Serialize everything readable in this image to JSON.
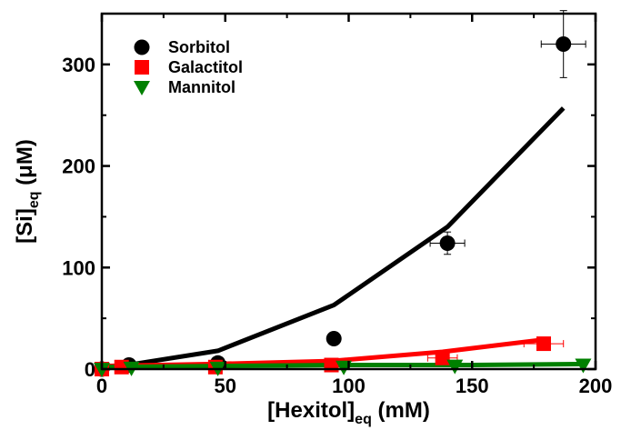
{
  "chart_data": {
    "type": "scatter",
    "xlabel": {
      "main": "[Hexitol]",
      "sub": "eq",
      "suffix": " (mM)"
    },
    "ylabel": {
      "main": "[Si]",
      "sub": "eq",
      "suffix": " (μM)"
    },
    "xlim": [
      0,
      200
    ],
    "ylim": [
      0,
      350
    ],
    "xticks": [
      0,
      50,
      100,
      150,
      200
    ],
    "yticks": [
      0,
      100,
      200,
      300
    ],
    "grid": false,
    "legend": "top-left",
    "series": [
      {
        "name": "Sorbitol",
        "marker": "circle",
        "color": "#000000",
        "points": [
          {
            "x": 0,
            "y": 0,
            "xerr": 0,
            "yerr": 0
          },
          {
            "x": 11,
            "y": 4,
            "xerr": 0,
            "yerr": 0
          },
          {
            "x": 47,
            "y": 6,
            "xerr": 0,
            "yerr": 0
          },
          {
            "x": 94,
            "y": 30,
            "xerr": 2,
            "yerr": 6
          },
          {
            "x": 140,
            "y": 124,
            "xerr": 7,
            "yerr": 11
          },
          {
            "x": 187,
            "y": 320,
            "xerr": 9,
            "yerr": 33
          }
        ],
        "fit": [
          {
            "x": 0,
            "y": 0
          },
          {
            "x": 47,
            "y": 18
          },
          {
            "x": 94,
            "y": 63
          },
          {
            "x": 140,
            "y": 140
          },
          {
            "x": 187,
            "y": 257
          }
        ]
      },
      {
        "name": "Galactitol",
        "marker": "square",
        "color": "#ff0000",
        "points": [
          {
            "x": 0,
            "y": 0,
            "xerr": 0,
            "yerr": 0
          },
          {
            "x": 8,
            "y": 2,
            "xerr": 0,
            "yerr": 0
          },
          {
            "x": 46,
            "y": 2,
            "xerr": 0,
            "yerr": 0
          },
          {
            "x": 93,
            "y": 4,
            "xerr": 0,
            "yerr": 0
          },
          {
            "x": 138,
            "y": 11,
            "xerr": 6,
            "yerr": 2
          },
          {
            "x": 179,
            "y": 25,
            "xerr": 8,
            "yerr": 3
          }
        ],
        "fit": [
          {
            "x": 0,
            "y": 3
          },
          {
            "x": 46,
            "y": 5
          },
          {
            "x": 93,
            "y": 8
          },
          {
            "x": 138,
            "y": 17
          },
          {
            "x": 179,
            "y": 29
          }
        ]
      },
      {
        "name": "Mannitol",
        "marker": "triangle-down",
        "color": "#008000",
        "points": [
          {
            "x": 0,
            "y": 0,
            "xerr": 0,
            "yerr": 0
          },
          {
            "x": 12,
            "y": 1,
            "xerr": 0,
            "yerr": 0
          },
          {
            "x": 47,
            "y": 1,
            "xerr": 0,
            "yerr": 0
          },
          {
            "x": 98,
            "y": 2,
            "xerr": 0,
            "yerr": 0
          },
          {
            "x": 143,
            "y": 3,
            "xerr": 0,
            "yerr": 0
          },
          {
            "x": 195,
            "y": 4,
            "xerr": 0,
            "yerr": 0
          }
        ],
        "fit": [
          {
            "x": 0,
            "y": 2
          },
          {
            "x": 50,
            "y": 3
          },
          {
            "x": 100,
            "y": 4
          },
          {
            "x": 150,
            "y": 4
          },
          {
            "x": 195,
            "y": 5
          }
        ]
      }
    ]
  }
}
